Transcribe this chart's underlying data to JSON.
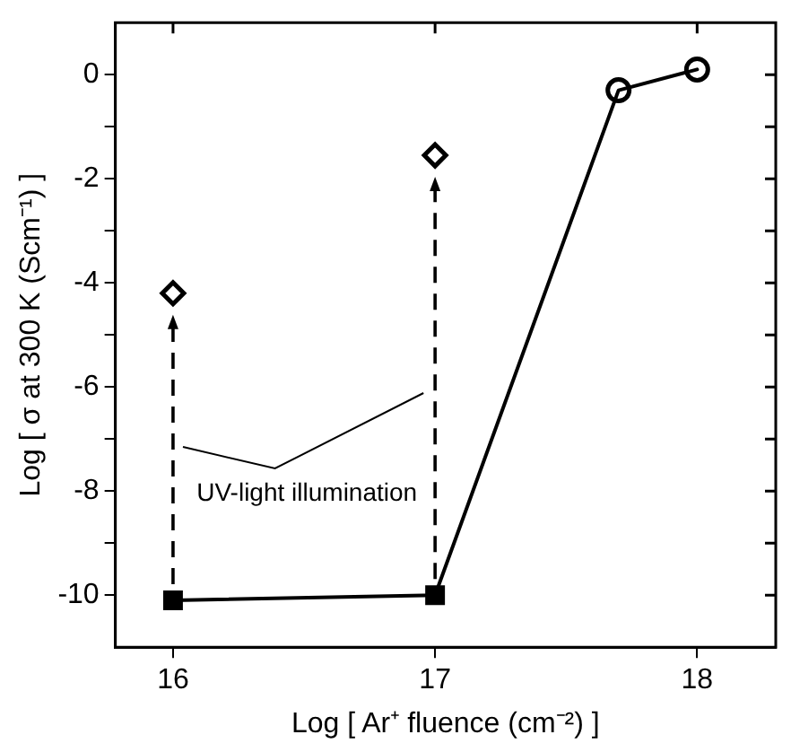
{
  "chart_data": {
    "type": "line",
    "xlabel": "Log [ Ar⁺ fluence (cm⁻²) ]",
    "ylabel": "Log [ σ at 300 K (Scm⁻¹) ]",
    "xlim": [
      15.78,
      18.3
    ],
    "xticks": [
      16,
      17,
      18
    ],
    "ylim": [
      -11,
      1
    ],
    "yticks": [
      -10,
      {
        "value": -9,
        "label": null
      },
      -8,
      {
        "value": -7,
        "label": null
      },
      -6,
      {
        "value": -5,
        "label": null
      },
      -4,
      {
        "value": -3,
        "label": null
      },
      -2,
      {
        "value": -1,
        "label": null
      },
      0
    ],
    "grid": false,
    "legend": false,
    "line_style": "solid",
    "series": [
      {
        "x": [
          16,
          17,
          17.7,
          18
        ],
        "values": [
          -10.1,
          -10,
          -0.3,
          0.1
        ],
        "color": "#000000",
        "marker": "none"
      },
      {
        "type": "scatter",
        "x": [
          16,
          17
        ],
        "values": [
          -10.1,
          -10
        ],
        "color": "#000000",
        "marker": "square"
      },
      {
        "type": "scatter",
        "x": [
          17.7,
          18
        ],
        "values": [
          -0.3,
          0.1
        ],
        "color": "#000000",
        "marker": "circle"
      },
      {
        "type": "scatter",
        "x": [
          16,
          17
        ],
        "values": [
          -4.2,
          -1.55
        ],
        "color": "#000000",
        "marker": "diamond"
      }
    ],
    "annotations": [
      "UV-light illumination"
    ]
  }
}
